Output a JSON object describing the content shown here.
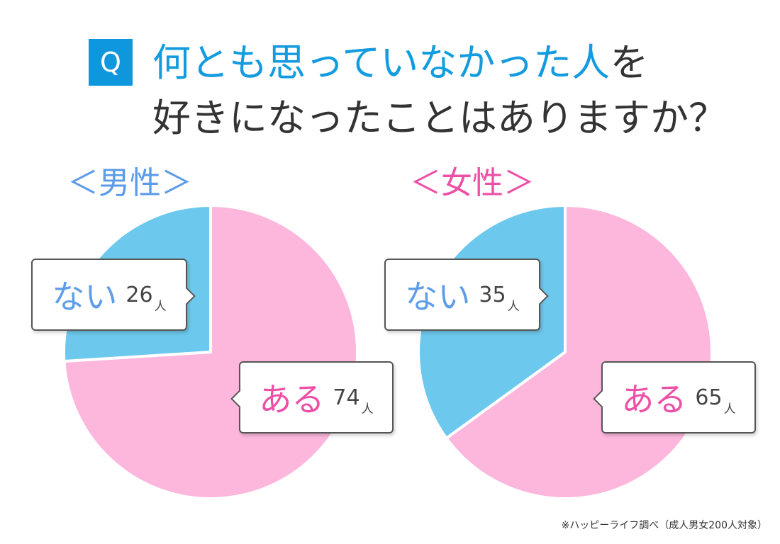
{
  "question": {
    "badge": "Q",
    "line1_highlight": "何とも思っていなかった人",
    "line1_rest": "を",
    "line2": "好きになったことはありますか？"
  },
  "footnote": "※ハッピーライフ調べ（成人男女200人対象）",
  "colors": {
    "aru": "#fdb6dc",
    "nai": "#6dc8ed",
    "aru_text": "#ee4fa6",
    "nai_text": "#5e9de8",
    "male_label": "#5b9be9",
    "female_label": "#ee4fa6",
    "accent": "#0e97dc"
  },
  "chart_data": [
    {
      "type": "pie",
      "title": "＜男性＞",
      "categories": [
        "ある",
        "ない"
      ],
      "values": [
        74,
        26
      ],
      "unit": "人",
      "value_labels": [
        "74",
        "26"
      ]
    },
    {
      "type": "pie",
      "title": "＜女性＞",
      "categories": [
        "ある",
        "ない"
      ],
      "values": [
        65,
        35
      ],
      "unit": "人",
      "value_labels": [
        "65",
        "35"
      ]
    }
  ]
}
